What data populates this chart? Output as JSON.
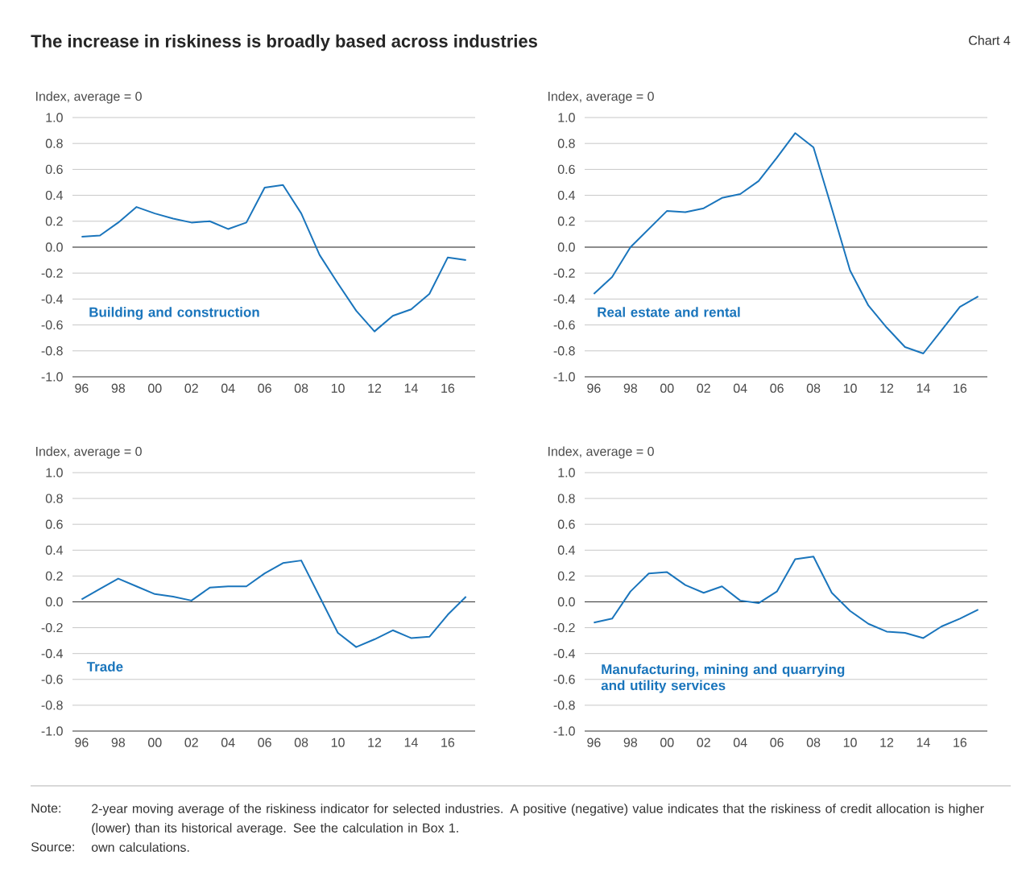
{
  "chart_data": [
    {
      "type": "line",
      "title": "The increase in riskiness is broadly based across industries",
      "annotations": [
        "Chart 4",
        "Note:",
        "2-year moving average of the riskiness indicator for selected industries. A positive (negative) value indicates that the riskiness of credit allocation is higher (lower) than its historical average. See the calculation in Box 1.",
        "Source:",
        "own calculations."
      ],
      "ylabel": "Index, average = 0",
      "categories": [
        "96",
        null,
        "98",
        null,
        "00",
        null,
        "02",
        null,
        "04",
        null,
        "06",
        null,
        "08",
        null,
        "10",
        null,
        "12",
        null,
        "14",
        null,
        "16",
        null
      ],
      "series": [
        {
          "name": "Building and construction",
          "color": "#1a75bc",
          "values": [
            0.08,
            0.09,
            0.19,
            0.31,
            0.26,
            0.22,
            0.19,
            0.2,
            0.14,
            0.19,
            0.46,
            0.48,
            0.26,
            -0.06,
            -0.28,
            -0.49,
            -0.65,
            -0.53,
            -0.48,
            -0.36,
            -0.08,
            -0.1
          ]
        }
      ],
      "ylim": [
        -1,
        1
      ],
      "yticks": [
        {
          "value": 1,
          "label": "1.0"
        },
        {
          "value": 0.8,
          "label": "0.8"
        },
        {
          "value": 0.6,
          "label": "0.6"
        },
        {
          "value": 0.4,
          "label": "0.4"
        },
        {
          "value": 0.2,
          "label": "0.2"
        },
        {
          "value": 0,
          "label": "0.0"
        },
        {
          "value": -0.2,
          "label": "-0.2"
        },
        {
          "value": -0.4,
          "label": "-0.4"
        },
        {
          "value": -0.6,
          "label": "-0.6"
        },
        {
          "value": -0.8,
          "label": "-0.8"
        },
        {
          "value": -1,
          "label": "-1.0"
        }
      ],
      "grid": "y",
      "ref_lines": [
        {
          "axis": "y",
          "value": 0,
          "color": "#333333"
        }
      ]
    },
    {
      "type": "line",
      "ylabel": "Index, average = 0",
      "categories": [
        "96",
        null,
        "98",
        null,
        "00",
        null,
        "02",
        null,
        "04",
        null,
        "06",
        null,
        "08",
        null,
        "10",
        null,
        "12",
        null,
        "14",
        null,
        "16",
        null
      ],
      "series": [
        {
          "name": "Real estate and rental",
          "color": "#1a75bc",
          "values": [
            -0.36,
            -0.23,
            0.0,
            0.14,
            0.28,
            0.27,
            0.3,
            0.38,
            0.41,
            0.51,
            0.69,
            0.88,
            0.77,
            0.3,
            -0.18,
            -0.45,
            -0.62,
            -0.77,
            -0.82,
            -0.64,
            -0.46,
            -0.38
          ]
        }
      ],
      "ylim": [
        -1,
        1
      ],
      "yticks": [
        {
          "value": 1,
          "label": "1.0"
        },
        {
          "value": 0.8,
          "label": "0.8"
        },
        {
          "value": 0.6,
          "label": "0.6"
        },
        {
          "value": 0.4,
          "label": "0.4"
        },
        {
          "value": 0.2,
          "label": "0.2"
        },
        {
          "value": 0,
          "label": "0.0"
        },
        {
          "value": -0.2,
          "label": "-0.2"
        },
        {
          "value": -0.4,
          "label": "-0.4"
        },
        {
          "value": -0.6,
          "label": "-0.6"
        },
        {
          "value": -0.8,
          "label": "-0.8"
        },
        {
          "value": -1,
          "label": "-1.0"
        }
      ],
      "grid": "y",
      "ref_lines": [
        {
          "axis": "y",
          "value": 0,
          "color": "#333333"
        }
      ]
    },
    {
      "type": "line",
      "ylabel": "Index, average = 0",
      "categories": [
        "96",
        null,
        "98",
        null,
        "00",
        null,
        "02",
        null,
        "04",
        null,
        "06",
        null,
        "08",
        null,
        "10",
        null,
        "12",
        null,
        "14",
        null,
        "16",
        null
      ],
      "series": [
        {
          "name": "Trade",
          "color": "#1a75bc",
          "values": [
            0.02,
            0.1,
            0.18,
            0.12,
            0.06,
            0.04,
            0.01,
            0.11,
            0.12,
            0.12,
            0.22,
            0.3,
            0.32,
            0.04,
            -0.24,
            -0.35,
            -0.29,
            -0.22,
            -0.28,
            -0.27,
            -0.1,
            0.04
          ]
        }
      ],
      "ylim": [
        -1,
        1
      ],
      "yticks": [
        {
          "value": 1,
          "label": "1.0"
        },
        {
          "value": 0.8,
          "label": "0.8"
        },
        {
          "value": 0.6,
          "label": "0.6"
        },
        {
          "value": 0.4,
          "label": "0.4"
        },
        {
          "value": 0.2,
          "label": "0.2"
        },
        {
          "value": 0,
          "label": "0.0"
        },
        {
          "value": -0.2,
          "label": "-0.2"
        },
        {
          "value": -0.4,
          "label": "-0.4"
        },
        {
          "value": -0.6,
          "label": "-0.6"
        },
        {
          "value": -0.8,
          "label": "-0.8"
        },
        {
          "value": -1,
          "label": "-1.0"
        }
      ],
      "grid": "y",
      "ref_lines": [
        {
          "axis": "y",
          "value": 0,
          "color": "#333333"
        }
      ]
    },
    {
      "type": "line",
      "ylabel": "Index, average = 0",
      "categories": [
        "96",
        null,
        "98",
        null,
        "00",
        null,
        "02",
        null,
        "04",
        null,
        "06",
        null,
        "08",
        null,
        "10",
        null,
        "12",
        null,
        "14",
        null,
        "16",
        null
      ],
      "series": [
        {
          "name": "Manufacturing, mining and quarrying and utility services",
          "color": "#1a75bc",
          "values": [
            -0.16,
            -0.13,
            0.08,
            0.22,
            0.23,
            0.13,
            0.07,
            0.12,
            0.01,
            -0.01,
            0.08,
            0.33,
            0.35,
            0.07,
            -0.07,
            -0.17,
            -0.23,
            -0.24,
            -0.28,
            -0.19,
            -0.13,
            -0.06
          ]
        }
      ],
      "ylim": [
        -1,
        1
      ],
      "yticks": [
        {
          "value": 1,
          "label": "1.0"
        },
        {
          "value": 0.8,
          "label": "0.8"
        },
        {
          "value": 0.6,
          "label": "0.6"
        },
        {
          "value": 0.4,
          "label": "0.4"
        },
        {
          "value": 0.2,
          "label": "0.2"
        },
        {
          "value": 0,
          "label": "0.0"
        },
        {
          "value": -0.2,
          "label": "-0.2"
        },
        {
          "value": -0.4,
          "label": "-0.4"
        },
        {
          "value": -0.6,
          "label": "-0.6"
        },
        {
          "value": -0.8,
          "label": "-0.8"
        },
        {
          "value": -1,
          "label": "-1.0"
        }
      ],
      "grid": "y",
      "ref_lines": [
        {
          "axis": "y",
          "value": 0,
          "color": "#333333"
        }
      ]
    }
  ]
}
